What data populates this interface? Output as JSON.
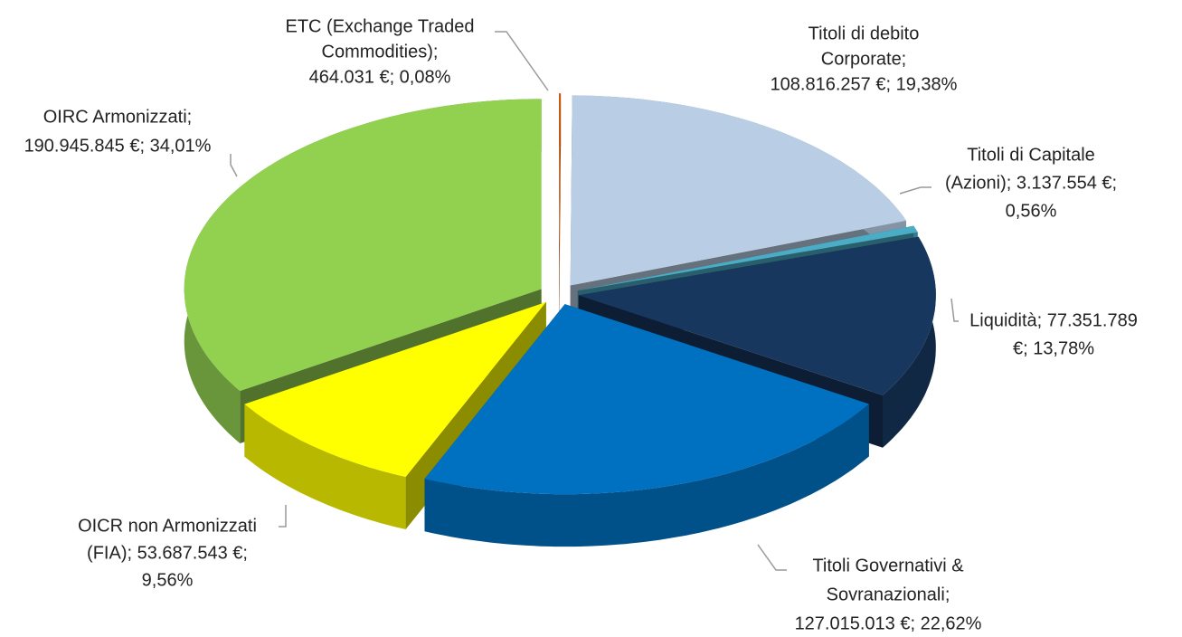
{
  "chart_data": {
    "type": "pie3d",
    "values": [
      464031,
      108816257,
      3137554,
      77351789,
      127015013,
      53687543,
      190945845
    ],
    "value_labels": [
      [
        "ETC (Exchange Traded",
        "Commodities);",
        "464.031 €; 0,08%"
      ],
      [
        "Titoli di debito",
        "Corporate;",
        "108.816.257 €; 19,38%"
      ],
      [
        "Titoli di Capitale",
        "(Azioni); 3.137.554 €;",
        "0,56%"
      ],
      [
        "Liquidità; 77.351.789",
        "€; 13,78%"
      ],
      [
        "Titoli Governativi &",
        "Sovranazionali;",
        "127.015.013 €; 22,62%"
      ],
      [
        "OICR non Armonizzati",
        "(FIA); 53.687.543 €;",
        "9,56%"
      ],
      [
        "OIRC Armonizzati;",
        "190.945.845 €; 34,01%"
      ]
    ],
    "colors": [
      "#c55a11",
      "#b9cde5",
      "#4bacc6",
      "#17375e",
      "#0070c0",
      "#ffff00",
      "#92d050"
    ]
  }
}
